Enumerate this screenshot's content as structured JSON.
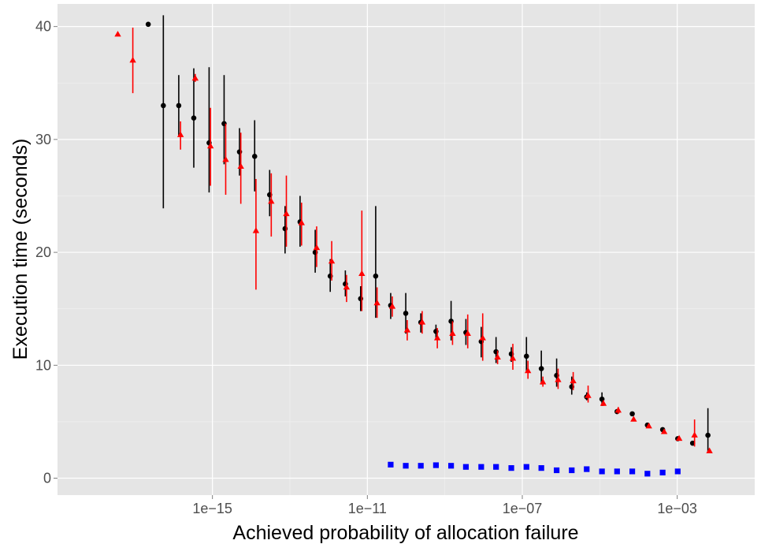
{
  "chart_data": {
    "type": "scatter",
    "title": "",
    "xlabel": "Achieved probability of allocation failure",
    "ylabel": "Execution time (seconds)",
    "x_scale": "log10",
    "xlim": [
      1e-19,
      0.1
    ],
    "ylim": [
      -1.5,
      42
    ],
    "x_ticks": [
      {
        "value": 1e-15,
        "label": "1e−15"
      },
      {
        "value": 1e-11,
        "label": "1e−11"
      },
      {
        "value": 1e-07,
        "label": "1e−07"
      },
      {
        "value": 0.001,
        "label": "1e−03"
      }
    ],
    "y_ticks": [
      {
        "value": 0,
        "label": "0"
      },
      {
        "value": 10,
        "label": "10"
      },
      {
        "value": 20,
        "label": "20"
      },
      {
        "value": 30,
        "label": "30"
      },
      {
        "value": 40,
        "label": "40"
      }
    ],
    "grid": true,
    "legend": "none",
    "series": [
      {
        "marker": "circle",
        "color": "#000000",
        "points": [
          {
            "x": 2.2e-17,
            "y": 40.2
          },
          {
            "x": 5.4e-17,
            "y": 33.0,
            "ymin": 23.9,
            "ymax": 41.0
          },
          {
            "x": 1.35e-16,
            "y": 33.0,
            "ymin": 30.3,
            "ymax": 35.7
          },
          {
            "x": 3.3e-16,
            "y": 31.9,
            "ymin": 27.5,
            "ymax": 36.3
          },
          {
            "x": 8.2e-16,
            "y": 29.7,
            "ymin": 25.3,
            "ymax": 36.4
          },
          {
            "x": 2e-15,
            "y": 31.4,
            "ymin": 27.8,
            "ymax": 35.7
          },
          {
            "x": 5e-15,
            "y": 28.9,
            "ymin": 26.8,
            "ymax": 31.0
          },
          {
            "x": 1.23e-14,
            "y": 28.5,
            "ymin": 25.4,
            "ymax": 31.7
          },
          {
            "x": 3e-14,
            "y": 25.1,
            "ymin": 23.2,
            "ymax": 27.3
          },
          {
            "x": 7.5e-14,
            "y": 22.1,
            "ymin": 19.9,
            "ymax": 24.1
          },
          {
            "x": 1.83e-13,
            "y": 22.7,
            "ymin": 20.5,
            "ymax": 25.0
          },
          {
            "x": 4.5e-13,
            "y": 20.0,
            "ymin": 18.2,
            "ymax": 22.0
          },
          {
            "x": 1.1e-12,
            "y": 17.9,
            "ymin": 16.5,
            "ymax": 19.4
          },
          {
            "x": 2.7e-12,
            "y": 17.2,
            "ymin": 16.1,
            "ymax": 18.4
          },
          {
            "x": 6.7e-12,
            "y": 15.9,
            "ymin": 14.8,
            "ymax": 17.0
          },
          {
            "x": 1.64e-11,
            "y": 17.9,
            "ymin": 14.2,
            "ymax": 24.1
          },
          {
            "x": 4e-11,
            "y": 15.3,
            "ymin": 14.1,
            "ymax": 16.4
          },
          {
            "x": 9.8e-11,
            "y": 14.6,
            "ymin": 12.8,
            "ymax": 16.4
          },
          {
            "x": 2.4e-10,
            "y": 13.8,
            "ymin": 12.9,
            "ymax": 14.6
          },
          {
            "x": 5.9e-10,
            "y": 13.0,
            "ymin": 12.4,
            "ymax": 13.6
          },
          {
            "x": 1.45e-09,
            "y": 13.9,
            "ymin": 12.2,
            "ymax": 15.7
          },
          {
            "x": 3.5e-09,
            "y": 12.9,
            "ymin": 11.8,
            "ymax": 14.1
          },
          {
            "x": 8.7e-09,
            "y": 12.1,
            "ymin": 10.7,
            "ymax": 13.4
          },
          {
            "x": 2.1e-08,
            "y": 11.2,
            "ymin": 10.2,
            "ymax": 12.5
          },
          {
            "x": 5.2e-08,
            "y": 11.0,
            "ymin": 10.3,
            "ymax": 11.6
          },
          {
            "x": 1.28e-07,
            "y": 10.8,
            "ymin": 9.4,
            "ymax": 12.5
          },
          {
            "x": 3.1e-07,
            "y": 9.7,
            "ymin": 8.3,
            "ymax": 11.3
          },
          {
            "x": 7.7e-07,
            "y": 9.1,
            "ymin": 8.1,
            "ymax": 10.6
          },
          {
            "x": 1.89e-06,
            "y": 8.1,
            "ymin": 7.4,
            "ymax": 9.0
          },
          {
            "x": 4.6e-06,
            "y": 7.2,
            "ymin": 6.9,
            "ymax": 7.6
          },
          {
            "x": 1.14e-05,
            "y": 7.0,
            "ymin": 6.4,
            "ymax": 7.6
          },
          {
            "x": 2.8e-05,
            "y": 5.9,
            "ymin": 5.7,
            "ymax": 6.1
          },
          {
            "x": 6.9e-05,
            "y": 5.7
          },
          {
            "x": 0.00017,
            "y": 4.7
          },
          {
            "x": 0.00042,
            "y": 4.3
          },
          {
            "x": 0.00103,
            "y": 3.5
          },
          {
            "x": 0.0025,
            "y": 3.1
          },
          {
            "x": 0.0062,
            "y": 3.8,
            "ymin": 2.3,
            "ymax": 6.2
          }
        ]
      },
      {
        "marker": "triangle",
        "color": "#ff0000",
        "points": [
          {
            "x": 3.6e-18,
            "y": 39.3
          },
          {
            "x": 8.8e-18,
            "y": 37.0,
            "ymin": 34.1,
            "ymax": 39.9
          },
          {
            "x": 1.5e-16,
            "y": 30.4,
            "ymin": 29.1,
            "ymax": 31.6
          },
          {
            "x": 3.6e-16,
            "y": 35.4,
            "ymin": 35.1,
            "ymax": 35.8
          },
          {
            "x": 8.9e-16,
            "y": 29.4,
            "ymin": 25.9,
            "ymax": 32.8
          },
          {
            "x": 2.2e-15,
            "y": 28.2,
            "ymin": 25.1,
            "ymax": 31.4
          },
          {
            "x": 5.4e-15,
            "y": 27.6,
            "ymin": 24.3,
            "ymax": 30.6
          },
          {
            "x": 1.33e-14,
            "y": 21.9,
            "ymin": 16.7,
            "ymax": 26.5
          },
          {
            "x": 3.3e-14,
            "y": 24.5,
            "ymin": 21.4,
            "ymax": 27.0
          },
          {
            "x": 8.1e-14,
            "y": 23.4,
            "ymin": 20.5,
            "ymax": 26.8
          },
          {
            "x": 2e-13,
            "y": 22.6,
            "ymin": 20.6,
            "ymax": 24.4
          },
          {
            "x": 4.9e-13,
            "y": 20.4,
            "ymin": 18.7,
            "ymax": 22.3
          },
          {
            "x": 1.2e-12,
            "y": 19.2,
            "ymin": 17.5,
            "ymax": 21.0
          },
          {
            "x": 2.9e-12,
            "y": 16.9,
            "ymin": 15.6,
            "ymax": 18.0
          },
          {
            "x": 7.2e-12,
            "y": 18.1,
            "ymin": 14.8,
            "ymax": 23.7
          },
          {
            "x": 1.78e-11,
            "y": 15.5,
            "ymin": 14.2,
            "ymax": 16.9
          },
          {
            "x": 4.4e-11,
            "y": 15.2,
            "ymin": 14.3,
            "ymax": 16.1
          },
          {
            "x": 1.07e-10,
            "y": 13.1,
            "ymin": 12.2,
            "ymax": 14.0
          },
          {
            "x": 2.6e-10,
            "y": 13.8,
            "ymin": 12.8,
            "ymax": 14.8
          },
          {
            "x": 6.4e-10,
            "y": 12.4,
            "ymin": 11.5,
            "ymax": 13.3
          },
          {
            "x": 1.58e-09,
            "y": 12.8,
            "ymin": 11.8,
            "ymax": 13.9
          },
          {
            "x": 3.9e-09,
            "y": 12.8,
            "ymin": 11.5,
            "ymax": 14.5
          },
          {
            "x": 9.5e-09,
            "y": 12.4,
            "ymin": 10.4,
            "ymax": 14.6
          },
          {
            "x": 2.3e-08,
            "y": 10.7,
            "ymin": 10.1,
            "ymax": 11.3
          },
          {
            "x": 5.7e-08,
            "y": 10.6,
            "ymin": 9.6,
            "ymax": 11.9
          },
          {
            "x": 1.4e-07,
            "y": 9.5,
            "ymin": 8.8,
            "ymax": 10.4
          },
          {
            "x": 3.4e-07,
            "y": 8.5,
            "ymin": 8.1,
            "ymax": 9.0
          },
          {
            "x": 8.4e-07,
            "y": 8.7,
            "ymin": 7.9,
            "ymax": 9.7
          },
          {
            "x": 2.06e-06,
            "y": 8.6,
            "ymin": 7.8,
            "ymax": 9.4
          },
          {
            "x": 5e-06,
            "y": 7.3,
            "ymin": 6.7,
            "ymax": 8.2
          },
          {
            "x": 1.24e-05,
            "y": 6.6,
            "ymin": 6.4,
            "ymax": 6.9
          },
          {
            "x": 3e-05,
            "y": 6.0,
            "ymin": 5.7,
            "ymax": 6.3
          },
          {
            "x": 7.5e-05,
            "y": 5.2
          },
          {
            "x": 0.000185,
            "y": 4.6
          },
          {
            "x": 0.00046,
            "y": 4.1
          },
          {
            "x": 0.00112,
            "y": 3.5
          },
          {
            "x": 0.0028,
            "y": 3.8,
            "ymin": 2.8,
            "ymax": 5.2
          },
          {
            "x": 0.0068,
            "y": 2.4
          }
        ]
      },
      {
        "marker": "square",
        "color": "#0000ff",
        "points": [
          {
            "x": 4e-11,
            "y": 1.2
          },
          {
            "x": 9.8e-11,
            "y": 1.1
          },
          {
            "x": 2.4e-10,
            "y": 1.1
          },
          {
            "x": 5.9e-10,
            "y": 1.15
          },
          {
            "x": 1.45e-09,
            "y": 1.1
          },
          {
            "x": 3.5e-09,
            "y": 1.0
          },
          {
            "x": 8.7e-09,
            "y": 1.0
          },
          {
            "x": 2.1e-08,
            "y": 1.0
          },
          {
            "x": 5.2e-08,
            "y": 0.9
          },
          {
            "x": 1.28e-07,
            "y": 1.0
          },
          {
            "x": 3.1e-07,
            "y": 0.9
          },
          {
            "x": 7.7e-07,
            "y": 0.7
          },
          {
            "x": 1.89e-06,
            "y": 0.7
          },
          {
            "x": 4.6e-06,
            "y": 0.8
          },
          {
            "x": 1.14e-05,
            "y": 0.6
          },
          {
            "x": 2.8e-05,
            "y": 0.6
          },
          {
            "x": 6.9e-05,
            "y": 0.6
          },
          {
            "x": 0.00017,
            "y": 0.4
          },
          {
            "x": 0.00042,
            "y": 0.5
          },
          {
            "x": 0.00103,
            "y": 0.6
          }
        ]
      }
    ]
  }
}
